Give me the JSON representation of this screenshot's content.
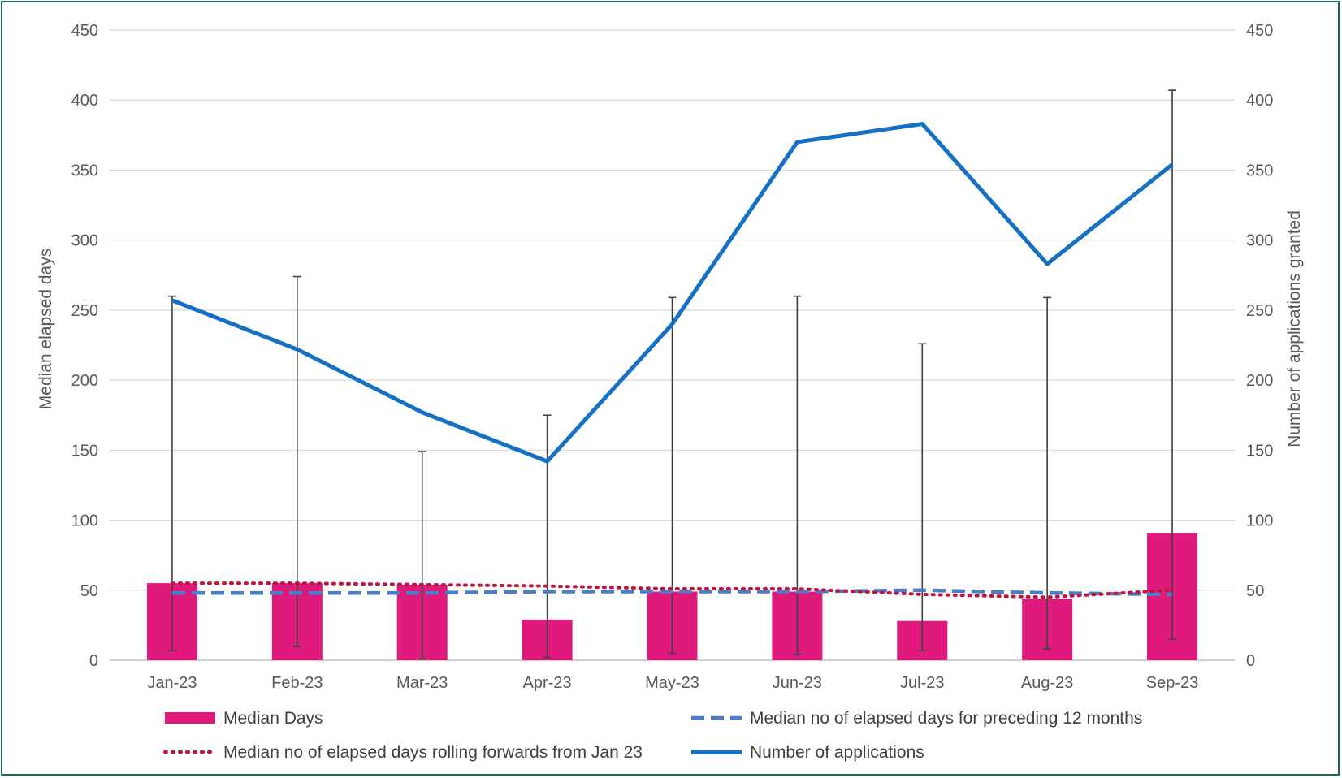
{
  "chart_data": {
    "type": "bar",
    "categories": [
      "Jan-23",
      "Feb-23",
      "Mar-23",
      "Apr-23",
      "May-23",
      "Jun-23",
      "Jul-23",
      "Aug-23",
      "Sep-23"
    ],
    "ylabel_left": "Median elapsed days",
    "ylabel_right": "Number  of applications granted",
    "ylim_left": [
      0,
      450
    ],
    "ylim_right": [
      0,
      450
    ],
    "yticks": [
      0,
      50,
      100,
      150,
      200,
      250,
      300,
      350,
      400,
      450
    ],
    "grid": true,
    "legend_position": "bottom",
    "series": [
      {
        "name": "Median Days",
        "kind": "bar",
        "axis": "left",
        "color": "#e0197d",
        "values": [
          55,
          55,
          54,
          29,
          49,
          49,
          28,
          44,
          91
        ],
        "error_low": [
          7,
          10,
          1,
          2,
          5,
          4,
          7,
          8,
          15
        ],
        "error_high": [
          260,
          274,
          149,
          175,
          259,
          260,
          226,
          259,
          407
        ]
      },
      {
        "name": "Median no of elapsed days for preceding 12 months",
        "kind": "line",
        "style": "dashed",
        "axis": "left",
        "color": "#4a7fc8",
        "values": [
          48,
          48,
          48,
          49,
          49,
          49,
          50,
          48,
          47
        ]
      },
      {
        "name": "Median no of elapsed days rolling forwards from Jan 23",
        "kind": "line",
        "style": "dotted",
        "axis": "left",
        "color": "#c0143c",
        "values": [
          55,
          55,
          54,
          53,
          51,
          51,
          47,
          45,
          50
        ]
      },
      {
        "name": "Number of applications",
        "kind": "line",
        "style": "solid",
        "axis": "right",
        "color": "#1670c4",
        "values": [
          257,
          222,
          177,
          142,
          240,
          370,
          383,
          283,
          354
        ]
      }
    ]
  }
}
